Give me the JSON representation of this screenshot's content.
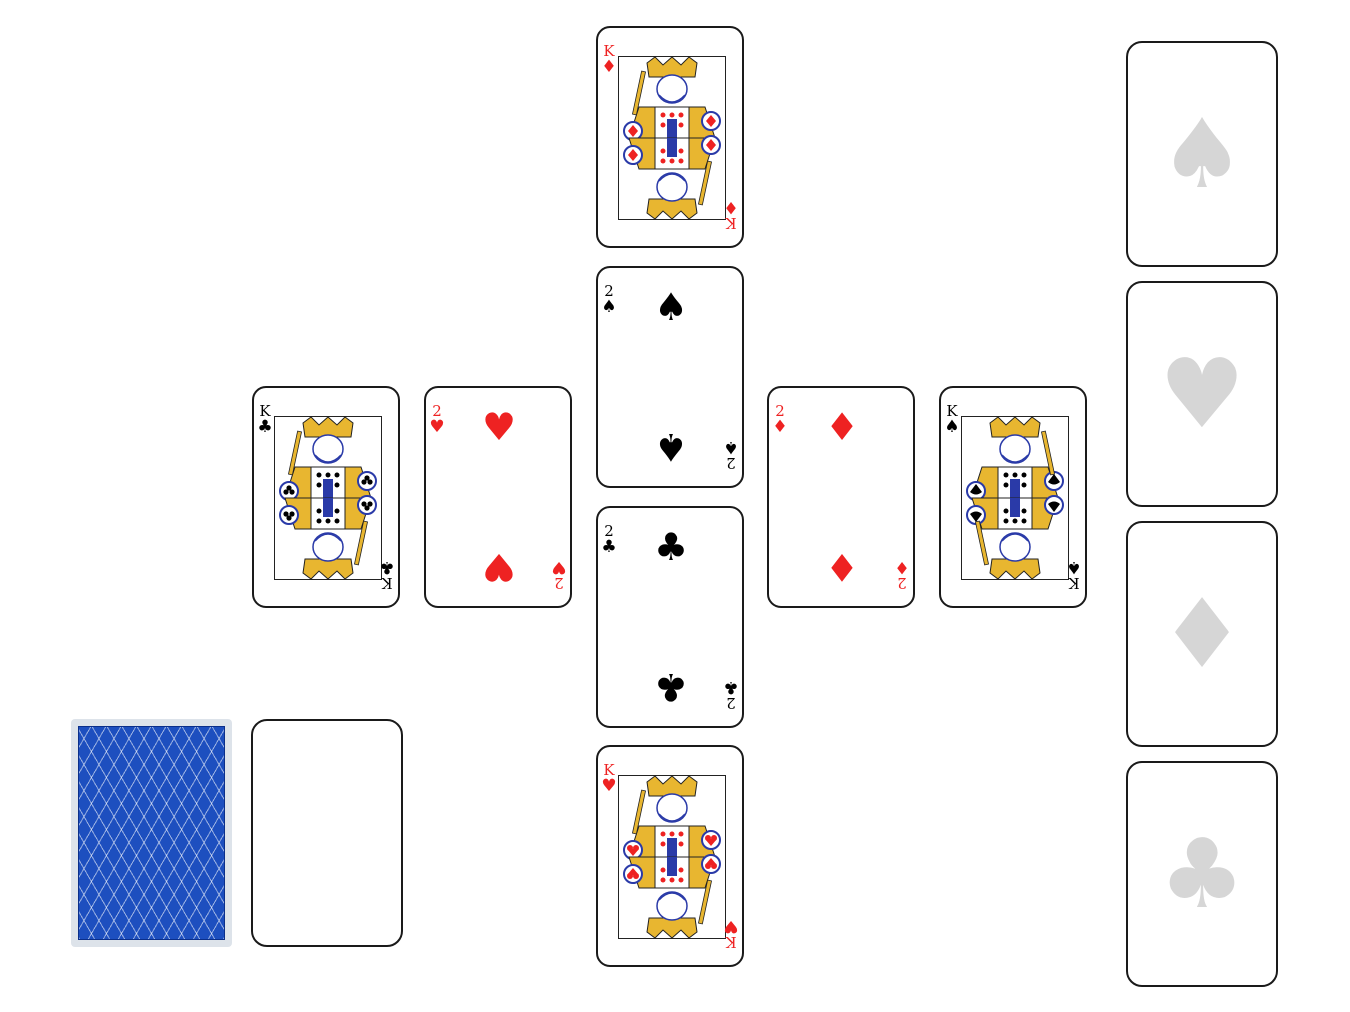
{
  "colors": {
    "red": "#ee2222",
    "black": "#000000",
    "back": "#1d4fbf",
    "slot_suit": "#d6d6d6"
  },
  "cards": {
    "king_diamonds": {
      "rank": "K",
      "suit": "♦",
      "color": "red"
    },
    "two_spades": {
      "rank": "2",
      "suit": "♠",
      "color": "black"
    },
    "two_clubs": {
      "rank": "2",
      "suit": "♣",
      "color": "black"
    },
    "king_hearts": {
      "rank": "K",
      "suit": "♥",
      "color": "red"
    },
    "king_clubs": {
      "rank": "K",
      "suit": "♣",
      "color": "black"
    },
    "two_hearts": {
      "rank": "2",
      "suit": "♥",
      "color": "red"
    },
    "two_diamonds": {
      "rank": "2",
      "suit": "♦",
      "color": "red"
    },
    "king_spades": {
      "rank": "K",
      "suit": "♠",
      "color": "black"
    }
  },
  "foundations": [
    {
      "suit": "♠",
      "icon": "spade-icon"
    },
    {
      "suit": "♥",
      "icon": "heart-icon"
    },
    {
      "suit": "♦",
      "icon": "diamond-icon"
    },
    {
      "suit": "♣",
      "icon": "club-icon"
    }
  ],
  "stock": {
    "icon": "card-back-pattern"
  },
  "waste": {
    "empty": true
  }
}
